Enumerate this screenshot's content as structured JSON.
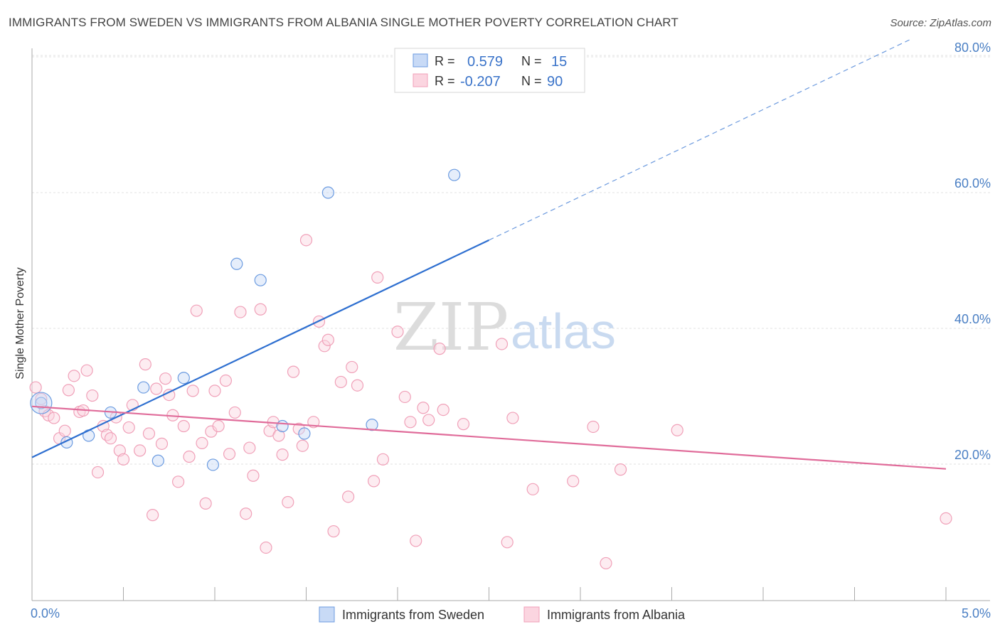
{
  "header": {
    "title": "IMMIGRANTS FROM SWEDEN VS IMMIGRANTS FROM ALBANIA SINGLE MOTHER POVERTY CORRELATION CHART",
    "source": "Source: ZipAtlas.com"
  },
  "watermark": {
    "zip": "ZIP",
    "atlas": "atlas"
  },
  "legend_top": {
    "r_label": "R =",
    "n_label": "N =",
    "rows": [
      {
        "r": "0.579",
        "n": "15"
      },
      {
        "r": "-0.207",
        "n": "90"
      }
    ]
  },
  "chart_data": {
    "type": "scatter",
    "title": "IMMIGRANTS FROM SWEDEN VS IMMIGRANTS FROM ALBANIA SINGLE MOTHER POVERTY CORRELATION CHART",
    "xlabel": "",
    "ylabel": "Single Mother Poverty",
    "xlim": [
      0,
      5.25
    ],
    "ylim": [
      0,
      82
    ],
    "x_tick_labels": [
      "0.0%",
      "5.0%"
    ],
    "y_ticks": [
      20,
      40,
      60,
      80
    ],
    "y_tick_labels": [
      "20.0%",
      "40.0%",
      "60.0%",
      "80.0%"
    ],
    "grid": true,
    "legend_position": "bottom",
    "colors": {
      "sweden": "#6b9be0",
      "albania": "#f0a0b8",
      "sweden_line": "#2e6fd0",
      "albania_line": "#e06c9a"
    },
    "series": [
      {
        "name": "Immigrants from Sweden",
        "r": 0.579,
        "n": 15,
        "trend": {
          "x0": 0.0,
          "y0": 21.0,
          "x_solid_end": 2.5,
          "y_solid_end": 53.0,
          "x1": 4.8,
          "y1": 82.5
        },
        "points": [
          [
            0.05,
            29.0
          ],
          [
            0.19,
            23.2
          ],
          [
            0.31,
            24.2
          ],
          [
            0.43,
            27.6
          ],
          [
            0.61,
            31.3
          ],
          [
            0.69,
            20.5
          ],
          [
            0.83,
            32.7
          ],
          [
            0.99,
            19.9
          ],
          [
            1.12,
            49.5
          ],
          [
            1.25,
            47.1
          ],
          [
            1.37,
            25.6
          ],
          [
            1.49,
            24.5
          ],
          [
            1.62,
            60.0
          ],
          [
            1.86,
            25.8
          ],
          [
            2.31,
            62.6
          ]
        ]
      },
      {
        "name": "Immigrants from Albania",
        "r": -0.207,
        "n": 90,
        "trend": {
          "x0": 0.0,
          "y0": 28.5,
          "x1": 5.0,
          "y1": 19.3
        },
        "points": [
          [
            0.02,
            31.3
          ],
          [
            0.05,
            29.6
          ],
          [
            0.07,
            27.8
          ],
          [
            0.09,
            27.2
          ],
          [
            0.12,
            26.8
          ],
          [
            0.15,
            23.8
          ],
          [
            0.18,
            24.9
          ],
          [
            0.2,
            30.9
          ],
          [
            0.23,
            33.0
          ],
          [
            0.26,
            27.7
          ],
          [
            0.28,
            27.9
          ],
          [
            0.3,
            33.8
          ],
          [
            0.33,
            30.1
          ],
          [
            0.36,
            18.8
          ],
          [
            0.39,
            25.6
          ],
          [
            0.41,
            24.3
          ],
          [
            0.43,
            23.8
          ],
          [
            0.46,
            26.9
          ],
          [
            0.48,
            22.0
          ],
          [
            0.5,
            20.7
          ],
          [
            0.53,
            25.4
          ],
          [
            0.55,
            28.7
          ],
          [
            0.59,
            22.0
          ],
          [
            0.62,
            34.7
          ],
          [
            0.64,
            24.5
          ],
          [
            0.66,
            12.5
          ],
          [
            0.68,
            31.1
          ],
          [
            0.71,
            23.0
          ],
          [
            0.73,
            32.6
          ],
          [
            0.75,
            30.2
          ],
          [
            0.77,
            27.2
          ],
          [
            0.8,
            17.4
          ],
          [
            0.83,
            25.6
          ],
          [
            0.86,
            21.1
          ],
          [
            0.88,
            30.8
          ],
          [
            0.9,
            42.6
          ],
          [
            0.93,
            23.1
          ],
          [
            0.95,
            14.2
          ],
          [
            0.98,
            24.8
          ],
          [
            1.0,
            30.8
          ],
          [
            1.02,
            25.6
          ],
          [
            1.06,
            32.3
          ],
          [
            1.08,
            21.5
          ],
          [
            1.11,
            27.6
          ],
          [
            1.14,
            42.4
          ],
          [
            1.17,
            12.7
          ],
          [
            1.19,
            22.4
          ],
          [
            1.21,
            18.3
          ],
          [
            1.25,
            42.8
          ],
          [
            1.28,
            7.7
          ],
          [
            1.3,
            24.9
          ],
          [
            1.32,
            26.2
          ],
          [
            1.35,
            24.2
          ],
          [
            1.37,
            21.4
          ],
          [
            1.4,
            14.4
          ],
          [
            1.43,
            33.6
          ],
          [
            1.46,
            25.2
          ],
          [
            1.48,
            22.7
          ],
          [
            1.5,
            53.0
          ],
          [
            1.54,
            26.2
          ],
          [
            1.57,
            41.0
          ],
          [
            1.6,
            37.4
          ],
          [
            1.62,
            38.3
          ],
          [
            1.65,
            10.1
          ],
          [
            1.69,
            32.1
          ],
          [
            1.73,
            15.2
          ],
          [
            1.75,
            34.3
          ],
          [
            1.78,
            31.6
          ],
          [
            1.87,
            17.5
          ],
          [
            1.89,
            47.5
          ],
          [
            1.92,
            20.7
          ],
          [
            2.0,
            39.5
          ],
          [
            2.04,
            29.9
          ],
          [
            2.07,
            26.2
          ],
          [
            2.1,
            8.7
          ],
          [
            2.14,
            28.3
          ],
          [
            2.17,
            26.5
          ],
          [
            2.23,
            37.0
          ],
          [
            2.25,
            28.0
          ],
          [
            2.36,
            25.9
          ],
          [
            2.57,
            37.7
          ],
          [
            2.6,
            8.5
          ],
          [
            2.63,
            26.8
          ],
          [
            2.74,
            16.3
          ],
          [
            2.96,
            17.5
          ],
          [
            3.07,
            25.5
          ],
          [
            3.14,
            5.4
          ],
          [
            3.22,
            19.2
          ],
          [
            3.53,
            25.0
          ],
          [
            5.0,
            12.0
          ]
        ]
      }
    ]
  }
}
